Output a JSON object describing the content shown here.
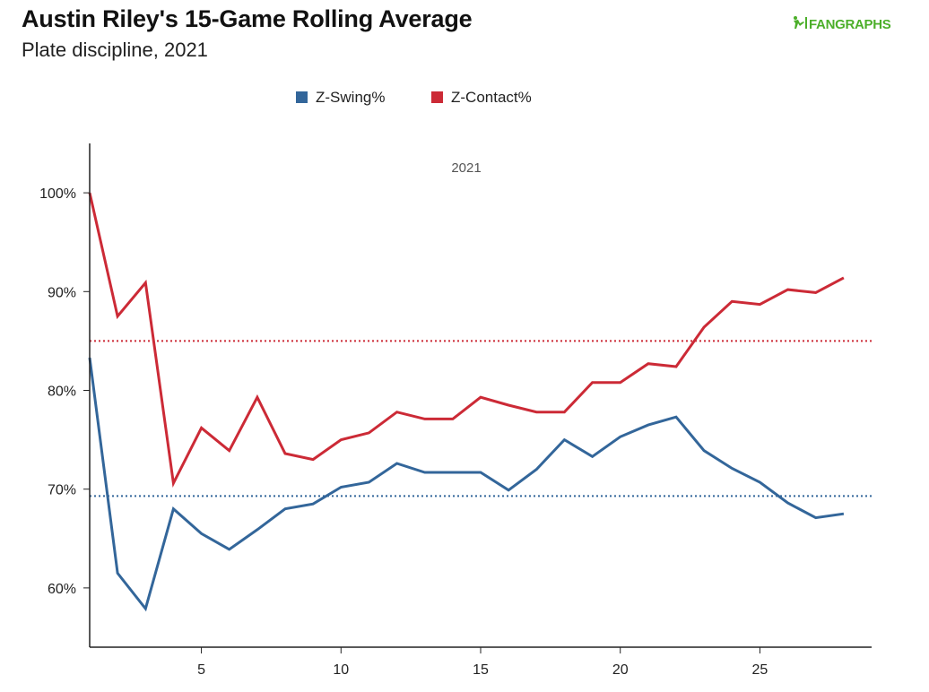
{
  "header": {
    "title": "Austin Riley's 15-Game Rolling Average",
    "subtitle": "Plate discipline, 2021",
    "logo_text": "FANGRAPHS"
  },
  "colors": {
    "z_swing": "#33669a",
    "z_contact": "#cc2a36",
    "logo": "#4caf2a",
    "axis": "#222222"
  },
  "chart_data": {
    "type": "line",
    "title": "Austin Riley's 15-Game Rolling Average",
    "subtitle": "Plate discipline, 2021",
    "facet_label": "2021",
    "xlabel": "",
    "ylabel": "",
    "xlim": [
      1,
      29
    ],
    "ylim": [
      54,
      105
    ],
    "xticks": [
      5,
      10,
      15,
      20,
      25
    ],
    "yticks": [
      60,
      70,
      80,
      90,
      100
    ],
    "ytick_labels": [
      "60%",
      "70%",
      "80%",
      "90%",
      "100%"
    ],
    "legend_position": "top-center",
    "grid": false,
    "x": [
      1,
      2,
      3,
      4,
      5,
      6,
      7,
      8,
      9,
      10,
      11,
      12,
      13,
      14,
      15,
      16,
      17,
      18,
      19,
      20,
      21,
      22,
      23,
      24,
      25,
      26,
      27,
      28
    ],
    "series": [
      {
        "name": "Z-Swing%",
        "key": "z_swing",
        "values": [
          83.3,
          61.5,
          57.9,
          68.0,
          65.5,
          63.9,
          65.9,
          68.0,
          68.5,
          70.2,
          70.7,
          72.6,
          71.7,
          71.7,
          71.7,
          69.9,
          72.0,
          75.0,
          73.3,
          75.3,
          76.5,
          77.3,
          73.9,
          72.1,
          70.7,
          68.6,
          67.1,
          67.5
        ],
        "reference": 69.3
      },
      {
        "name": "Z-Contact%",
        "key": "z_contact",
        "values": [
          100.0,
          87.5,
          90.9,
          70.6,
          76.2,
          73.9,
          79.3,
          73.6,
          73.0,
          75.0,
          75.7,
          77.8,
          77.1,
          77.1,
          79.3,
          78.5,
          77.8,
          77.8,
          80.8,
          80.8,
          82.7,
          82.4,
          86.4,
          89.0,
          88.7,
          90.2,
          89.9,
          91.4
        ],
        "reference": 85.0
      }
    ]
  }
}
